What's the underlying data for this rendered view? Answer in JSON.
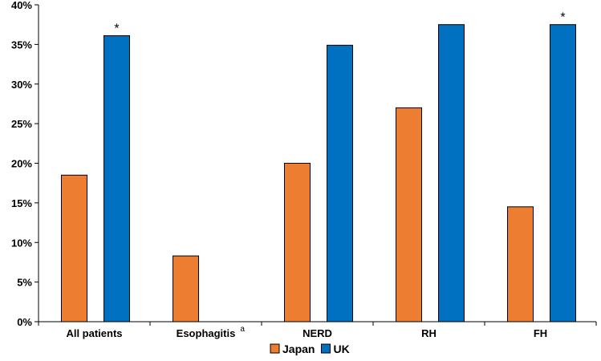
{
  "chart_data": {
    "type": "bar",
    "categories": [
      "All patients",
      "Esophagitis",
      "NERD",
      "RH",
      "FH"
    ],
    "category_superscripts": [
      "",
      "a",
      "",
      "",
      ""
    ],
    "series": [
      {
        "name": "Japan",
        "color": "#ed7d31",
        "values": [
          18.5,
          8.3,
          20.0,
          27.0,
          14.5
        ]
      },
      {
        "name": "UK",
        "color": "#0070c0",
        "values": [
          36.1,
          null,
          34.9,
          37.5,
          37.5
        ]
      }
    ],
    "annotations": [
      {
        "category": "All patients",
        "series": "UK",
        "text": "*"
      },
      {
        "category": "FH",
        "series": "UK",
        "text": "*"
      }
    ],
    "ylim": [
      0,
      40
    ],
    "yticks": [
      0,
      5,
      10,
      15,
      20,
      25,
      30,
      35,
      40
    ],
    "ytick_suffix": "%",
    "grid": false,
    "legend_position": "bottom"
  }
}
